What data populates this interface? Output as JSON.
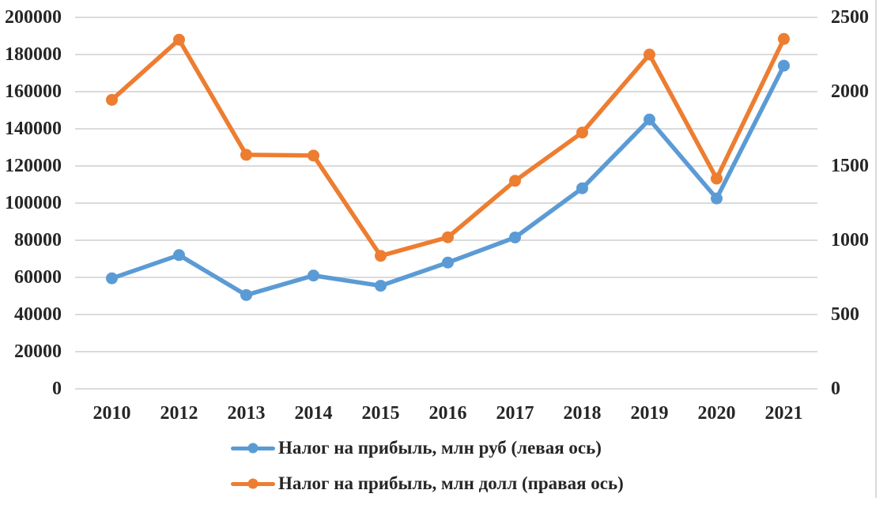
{
  "chart_data": {
    "type": "line",
    "title": "",
    "xlabel": "",
    "ylabel_left": "",
    "ylabel_right": "",
    "grid": true,
    "legend_position": "bottom",
    "categories": [
      "2010",
      "2012",
      "2013",
      "2014",
      "2015",
      "2016",
      "2017",
      "2018",
      "2019",
      "2020",
      "2021"
    ],
    "series": [
      {
        "name": "Налог на прибыль, млн руб (левая ось)",
        "axis": "left",
        "color": "#5B9BD5",
        "values": [
          59500,
          72000,
          50500,
          61000,
          55500,
          68000,
          81500,
          108000,
          145000,
          102500,
          174000
        ]
      },
      {
        "name": "Налог на прибыль, млн долл (правая ось)",
        "axis": "right",
        "color": "#ED7D31",
        "values": [
          1945,
          2350,
          1575,
          1570,
          895,
          1020,
          1400,
          1725,
          2250,
          1415,
          2355
        ]
      }
    ],
    "left_axis": {
      "min": 0,
      "max": 200000,
      "step": 20000,
      "tick_labels": [
        "0",
        "20000",
        "40000",
        "60000",
        "80000",
        "100000",
        "120000",
        "140000",
        "160000",
        "180000",
        "200000"
      ]
    },
    "right_axis": {
      "min": 0,
      "max": 2500,
      "step": 500,
      "tick_labels": [
        "0",
        "500",
        "1000",
        "1500",
        "2000",
        "2500"
      ]
    },
    "colors": {
      "gridline": "#D6D6D6",
      "axis_text": "#262626",
      "border_line": "#D9D9D9",
      "background": "#FFFFFF"
    }
  }
}
